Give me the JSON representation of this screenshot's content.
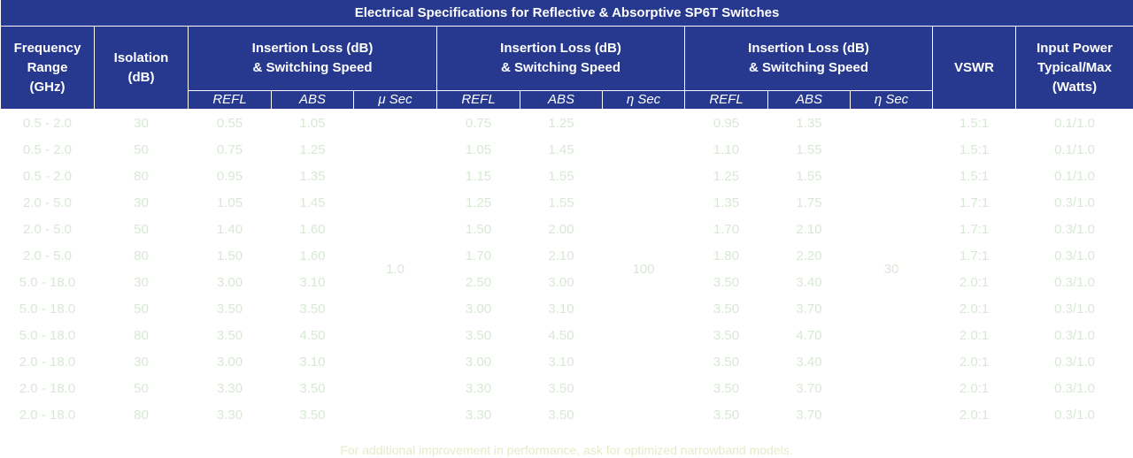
{
  "title": "Electrical Specifications for Reflective & Absorptive SP6T Switches",
  "header": {
    "frequency": "Frequency\nRange\n(GHz)",
    "isolation": "Isolation\n(dB)",
    "vswr": "VSWR",
    "power": "Input Power\nTypical/Max\n(Watts)"
  },
  "groups": [
    {
      "label": "Insertion Loss (dB)\n& Switching Speed",
      "sub": [
        "REFL",
        "ABS",
        "μ Sec"
      ],
      "speed": "1.0"
    },
    {
      "label": "Insertion Loss (dB)\n& Switching Speed",
      "sub": [
        "REFL",
        "ABS",
        "η Sec"
      ],
      "speed": "100"
    },
    {
      "label": "Insertion Loss (dB)\n& Switching Speed",
      "sub": [
        "REFL",
        "ABS",
        "η Sec"
      ],
      "speed": "30"
    }
  ],
  "rows": [
    [
      "0.5 - 2.0",
      "30",
      "0.55",
      "1.05",
      "0.75",
      "1.25",
      "0.95",
      "1.35",
      "1.5:1",
      "0.1/1.0"
    ],
    [
      "0.5 - 2.0",
      "50",
      "0.75",
      "1.25",
      "1.05",
      "1.45",
      "1.10",
      "1.55",
      "1.5:1",
      "0.1/1.0"
    ],
    [
      "0.5 - 2.0",
      "80",
      "0.95",
      "1.35",
      "1.15",
      "1.55",
      "1.25",
      "1.55",
      "1.5:1",
      "0.1/1.0"
    ],
    [
      "2.0 - 5.0",
      "30",
      "1.05",
      "1.45",
      "1.25",
      "1.55",
      "1.35",
      "1.75",
      "1.7:1",
      "0.3/1.0"
    ],
    [
      "2.0 - 5.0",
      "50",
      "1.40",
      "1.60",
      "1.50",
      "2.00",
      "1.70",
      "2.10",
      "1.7:1",
      "0.3/1.0"
    ],
    [
      "2.0 - 5.0",
      "80",
      "1.50",
      "1.60",
      "1.70",
      "2.10",
      "1.80",
      "2.20",
      "1.7:1",
      "0.3/1.0"
    ],
    [
      "5.0 - 18.0",
      "30",
      "3.00",
      "3.10",
      "2.50",
      "3.00",
      "3.50",
      "3.40",
      "2.0:1",
      "0.3/1.0"
    ],
    [
      "5.0 - 18.0",
      "50",
      "3.50",
      "3.50",
      "3.00",
      "3.10",
      "3.50",
      "3.70",
      "2.0:1",
      "0.3/1.0"
    ],
    [
      "5.0 - 18.0",
      "80",
      "3.50",
      "4.50",
      "3.50",
      "4.50",
      "3.50",
      "4.70",
      "2.0:1",
      "0.3/1.0"
    ],
    [
      "2.0 - 18.0",
      "30",
      "3.00",
      "3.10",
      "3.00",
      "3.10",
      "3.50",
      "3.40",
      "2.0:1",
      "0.3/1.0"
    ],
    [
      "2.0 - 18.0",
      "50",
      "3.30",
      "3.50",
      "3.30",
      "3.50",
      "3.50",
      "3.70",
      "2.0:1",
      "0.3/1.0"
    ],
    [
      "2.0 - 18.0",
      "80",
      "3.30",
      "3.50",
      "3.30",
      "3.50",
      "3.50",
      "3.70",
      "2.0:1",
      "0.3/1.0"
    ]
  ],
  "footnote": "For additional improvement in performance, ask for optimized narrowband models."
}
